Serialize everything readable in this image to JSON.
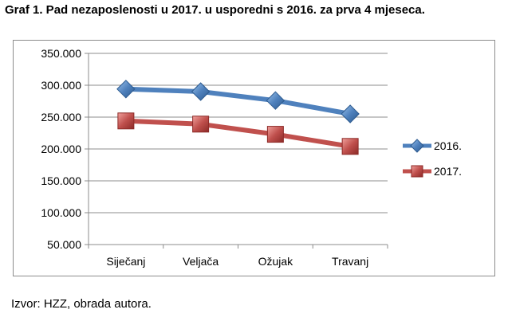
{
  "title": "Graf 1. Pad nezaposlenosti u 2017. u usporedni s 2016. za prva 4 mjeseca.",
  "source": "Izvor: HZZ, obrada autora.",
  "chart_data": {
    "type": "line",
    "categories": [
      "Siječanj",
      "Veljača",
      "Ožujak",
      "Travanj"
    ],
    "series": [
      {
        "name": "2016.",
        "values": [
          294000,
          290000,
          276000,
          255000
        ],
        "color": "#4f81bd",
        "marker": "diamond"
      },
      {
        "name": "2017.",
        "values": [
          244000,
          239000,
          223000,
          204000
        ],
        "color": "#c0504d",
        "marker": "square"
      }
    ],
    "ylim": [
      50000,
      350000
    ],
    "yticks": [
      50000,
      100000,
      150000,
      200000,
      250000,
      300000,
      350000
    ],
    "ytick_labels": [
      "50.000",
      "100.000",
      "150.000",
      "200.000",
      "250.000",
      "300.000",
      "350.000"
    ],
    "grid": true,
    "legend": "right",
    "xlabel": "",
    "ylabel": ""
  }
}
